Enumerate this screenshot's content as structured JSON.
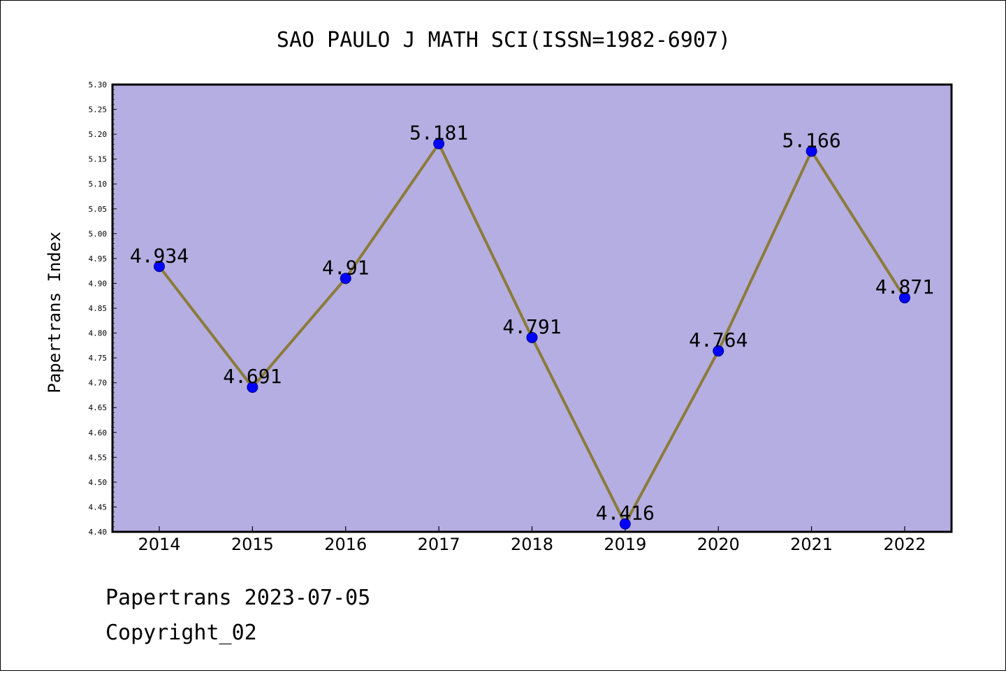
{
  "footer": {
    "line1": "Papertrans 2023-07-05",
    "line2": "Copyright_02"
  },
  "colors": {
    "plot_background": "#b5aee2",
    "line": "#8b7b3a",
    "marker": "#0000ff"
  },
  "chart_data": {
    "type": "line",
    "title": "SAO PAULO J MATH SCI(ISSN=1982-6907)",
    "xlabel": "",
    "ylabel": "Papertrans Index",
    "categories": [
      "2014",
      "2015",
      "2016",
      "2017",
      "2018",
      "2019",
      "2020",
      "2021",
      "2022"
    ],
    "series": [
      {
        "values": [
          4.934,
          4.691,
          4.91,
          5.181,
          4.791,
          4.416,
          4.764,
          5.166,
          4.871
        ],
        "labels": [
          "4.934",
          "4.691",
          "4.91",
          "5.181",
          "4.791",
          "4.416",
          "4.764",
          "5.166",
          "4.871"
        ]
      }
    ],
    "ylim": [
      4.4,
      5.3
    ],
    "yticks": [
      "4.40",
      "4.45",
      "4.50",
      "4.55",
      "4.60",
      "4.65",
      "4.70",
      "4.75",
      "4.80",
      "4.85",
      "4.90",
      "4.95",
      "5.00",
      "5.05",
      "5.10",
      "5.15",
      "5.20",
      "5.25",
      "5.30"
    ],
    "grid": false,
    "legend": "none"
  }
}
